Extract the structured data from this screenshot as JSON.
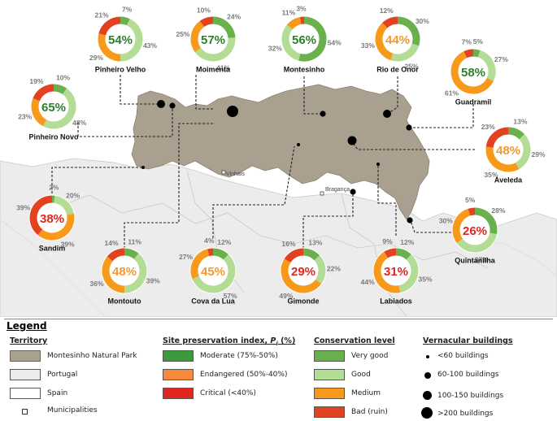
{
  "colors": {
    "park": "#aaa090",
    "portugal": "#ececec",
    "spain": "#ffffff",
    "very_good": "#6ab04c",
    "good": "#b3dc95",
    "medium": "#f79a1c",
    "bad": "#e2421f",
    "moderate": "#3c9a3c",
    "endangered": "#f78a3a",
    "critical": "#e0261e"
  },
  "towns": {
    "vinhais": "Vinhais",
    "braganca": "Bragança"
  },
  "sites": [
    {
      "id": "pinheiro-velho",
      "name": "Pinheiro Velho",
      "index": "54%",
      "index_class": "moderate",
      "very_good": "7%",
      "good": "43%",
      "medium": "29%",
      "bad": "21%",
      "vals": [
        7,
        43,
        29,
        21
      ]
    },
    {
      "id": "moimenta",
      "name": "Moimenta",
      "index": "57%",
      "index_class": "moderate",
      "very_good": "24%",
      "good": "41%",
      "medium": "25%",
      "bad": "10%",
      "vals": [
        24,
        41,
        25,
        10
      ]
    },
    {
      "id": "montesinho",
      "name": "Montesinho",
      "index": "56%",
      "index_class": "moderate",
      "very_good": "54%",
      "good": "32%",
      "medium": "11%",
      "bad": "3%",
      "vals": [
        54,
        32,
        11,
        3
      ]
    },
    {
      "id": "rio-de-onor",
      "name": "Rio de Onor",
      "index": "44%",
      "index_class": "endangered",
      "very_good": "30%",
      "good": "25%",
      "medium": "33%",
      "bad": "12%",
      "vals": [
        30,
        25,
        33,
        12
      ]
    },
    {
      "id": "guadramil",
      "name": "Guadramil",
      "index": "58%",
      "index_class": "moderate",
      "very_good": "5%",
      "good": "27%",
      "medium": "61%",
      "bad": "7%",
      "vals": [
        5,
        27,
        61,
        7
      ]
    },
    {
      "id": "pinheiro-novo",
      "name": "Pinheiro Novo",
      "index": "65%",
      "index_class": "moderate",
      "very_good": "10%",
      "good": "48%",
      "medium": "23%",
      "bad": "19%",
      "vals": [
        10,
        48,
        23,
        19
      ]
    },
    {
      "id": "aveleda",
      "name": "Aveleda",
      "index": "48%",
      "index_class": "endangered",
      "very_good": "13%",
      "good": "29%",
      "medium": "35%",
      "bad": "23%",
      "vals": [
        13,
        29,
        35,
        23
      ]
    },
    {
      "id": "sandim",
      "name": "Sandim",
      "index": "38%",
      "index_class": "critical",
      "very_good": "2%",
      "good": "20%",
      "medium": "39%",
      "bad": "39%",
      "vals": [
        2,
        20,
        39,
        39
      ]
    },
    {
      "id": "quintanilha",
      "name": "Quintanilha",
      "index": "26%",
      "index_class": "critical",
      "very_good": "28%",
      "good": "37%",
      "medium": "30%",
      "bad": "5%",
      "vals": [
        28,
        37,
        30,
        5
      ]
    },
    {
      "id": "montouto",
      "name": "Montouto",
      "index": "48%",
      "index_class": "endangered",
      "very_good": "11%",
      "good": "39%",
      "medium": "36%",
      "bad": "14%",
      "vals": [
        11,
        39,
        36,
        14
      ]
    },
    {
      "id": "cova-da-lua",
      "name": "Cova da Lua",
      "index": "45%",
      "index_class": "endangered",
      "very_good": "12%",
      "good": "57%",
      "medium": "27%",
      "bad": "4%",
      "vals": [
        12,
        57,
        27,
        4
      ]
    },
    {
      "id": "gimonde",
      "name": "Gimonde",
      "index": "29%",
      "index_class": "critical",
      "very_good": "13%",
      "good": "22%",
      "medium": "49%",
      "bad": "16%",
      "vals": [
        13,
        22,
        49,
        16
      ]
    },
    {
      "id": "labiados",
      "name": "Labiados",
      "index": "31%",
      "index_class": "critical",
      "very_good": "12%",
      "good": "35%",
      "medium": "44%",
      "bad": "9%",
      "vals": [
        12,
        35,
        44,
        9
      ]
    }
  ],
  "legend": {
    "title": "Legend",
    "territory": {
      "heading": "Territory",
      "park": "Montesinho Natural Park",
      "portugal": "Portugal",
      "spain": "Spain",
      "municipalities": "Municipalities"
    },
    "index": {
      "heading": "Site preservation index, Pi (%)",
      "moderate": "Moderate (75%-50%)",
      "endangered": "Endangered (50%-40%)",
      "critical": "Critical (<40%)"
    },
    "conservation": {
      "heading": "Conservation level",
      "very_good": "Very good",
      "good": "Good",
      "medium": "Medium",
      "bad": "Bad (ruin)"
    },
    "buildings": {
      "heading": "Vernacular buildings",
      "b60": "<60 buildings",
      "b100": "60-100 buildings",
      "b150": "100-150 buildings",
      "b200": ">200 buildings"
    }
  }
}
